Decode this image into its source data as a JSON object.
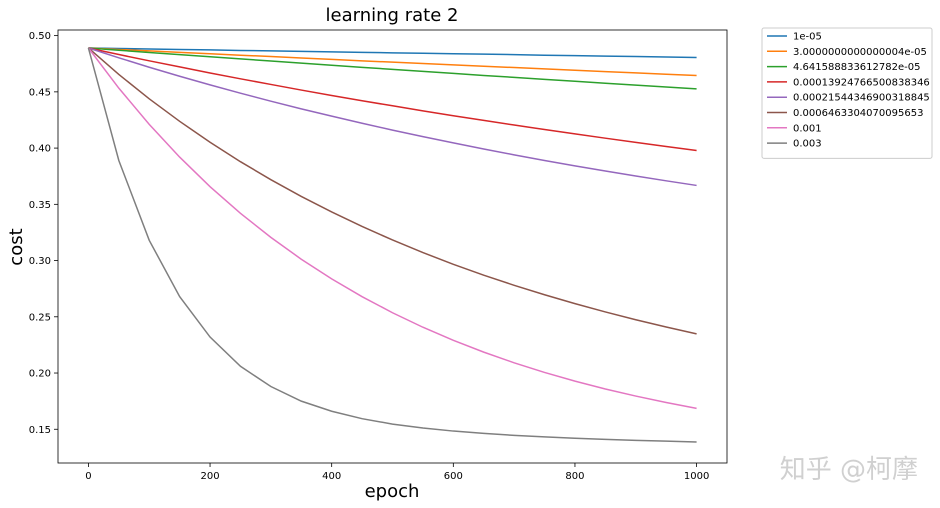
{
  "chart_data": {
    "type": "line",
    "title": "learning rate 2",
    "xlabel": "epoch",
    "ylabel": "cost",
    "xlim": [
      -50,
      1050
    ],
    "ylim": [
      0.12,
      0.505
    ],
    "xticks": [
      0,
      200,
      400,
      600,
      800,
      1000
    ],
    "xtick_labels": [
      "0",
      "200",
      "400",
      "600",
      "800",
      "1000"
    ],
    "yticks": [
      0.15,
      0.2,
      0.25,
      0.3,
      0.35,
      0.4,
      0.45,
      0.5
    ],
    "ytick_labels": [
      "0.15",
      "0.20",
      "0.25",
      "0.30",
      "0.35",
      "0.40",
      "0.45",
      "0.50"
    ],
    "grid": false,
    "legend_position": "outside-top-right",
    "x": [
      0,
      50,
      100,
      150,
      200,
      250,
      300,
      350,
      400,
      450,
      500,
      550,
      600,
      650,
      700,
      750,
      800,
      850,
      900,
      950,
      1000
    ],
    "series": [
      {
        "name": "1e-05",
        "color": "#1f77b4",
        "values": [
          0.489,
          0.4886,
          0.4881,
          0.4877,
          0.4873,
          0.4868,
          0.4864,
          0.486,
          0.4856,
          0.4851,
          0.4847,
          0.4843,
          0.4839,
          0.4835,
          0.4831,
          0.4826,
          0.4822,
          0.4818,
          0.4814,
          0.481,
          0.4806
        ]
      },
      {
        "name": "3.0000000000000004e-05",
        "color": "#ff7f0e",
        "values": [
          0.489,
          0.4877,
          0.4864,
          0.4851,
          0.4839,
          0.4826,
          0.4814,
          0.4801,
          0.4789,
          0.4776,
          0.4764,
          0.4752,
          0.474,
          0.4728,
          0.4716,
          0.4704,
          0.4692,
          0.468,
          0.4669,
          0.4657,
          0.4646
        ]
      },
      {
        "name": "4.641588833612782e-05",
        "color": "#2ca02c",
        "values": [
          0.489,
          0.487,
          0.485,
          0.4831,
          0.4812,
          0.4793,
          0.4774,
          0.4755,
          0.4737,
          0.4718,
          0.47,
          0.4682,
          0.4664,
          0.4646,
          0.4629,
          0.4611,
          0.4594,
          0.4577,
          0.456,
          0.4543,
          0.4526
        ]
      },
      {
        "name": "0.00013924766500838346",
        "color": "#d62728",
        "values": [
          0.489,
          0.4832,
          0.4776,
          0.4722,
          0.4668,
          0.4616,
          0.4566,
          0.4516,
          0.4468,
          0.4421,
          0.4376,
          0.4331,
          0.4288,
          0.4246,
          0.4205,
          0.4165,
          0.4126,
          0.4088,
          0.4051,
          0.4014,
          0.3979
        ]
      },
      {
        "name": "0.00021544346900318845",
        "color": "#9467bd",
        "values": [
          0.489,
          0.4803,
          0.4719,
          0.4639,
          0.4562,
          0.4488,
          0.4417,
          0.4349,
          0.4284,
          0.4221,
          0.416,
          0.4102,
          0.4046,
          0.3992,
          0.394,
          0.389,
          0.3842,
          0.3796,
          0.3752,
          0.3709,
          0.3668
        ]
      },
      {
        "name": "0.0006463304070095653",
        "color": "#8c564b",
        "values": [
          0.489,
          0.4655,
          0.4438,
          0.4238,
          0.4052,
          0.3879,
          0.3719,
          0.357,
          0.3432,
          0.3303,
          0.3183,
          0.3071,
          0.2967,
          0.287,
          0.278,
          0.2696,
          0.2617,
          0.2543,
          0.2474,
          0.2409,
          0.2348
        ]
      },
      {
        "name": "0.001",
        "color": "#e377c2",
        "values": [
          0.489,
          0.4533,
          0.4211,
          0.392,
          0.3657,
          0.342,
          0.3206,
          0.3012,
          0.2837,
          0.2679,
          0.2536,
          0.2407,
          0.2291,
          0.2186,
          0.2091,
          0.2005,
          0.1928,
          0.1858,
          0.1795,
          0.1738,
          0.1686
        ]
      },
      {
        "name": "0.003",
        "color": "#7f7f7f",
        "values": [
          0.489,
          0.389,
          0.318,
          0.268,
          0.232,
          0.206,
          0.188,
          0.175,
          0.166,
          0.1594,
          0.1546,
          0.1511,
          0.1484,
          0.1463,
          0.1446,
          0.1432,
          0.142,
          0.141,
          0.1401,
          0.1394,
          0.1387
        ]
      }
    ]
  },
  "watermark": "知乎 @柯摩"
}
